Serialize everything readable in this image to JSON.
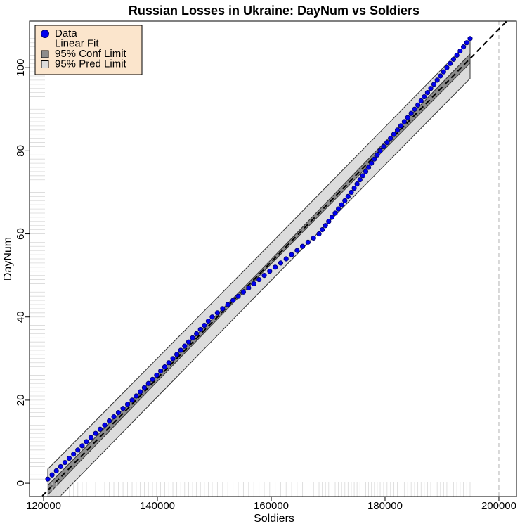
{
  "chart_data": {
    "type": "scatter",
    "title": "Russian Losses in Ukraine: DayNum vs Soldiers",
    "x_label": "Soldiers",
    "y_label": "DayNum",
    "xlim": [
      117530,
      203090
    ],
    "ylim": [
      -3.2,
      111.2
    ],
    "xticks": [
      120000,
      140000,
      160000,
      180000,
      200000
    ],
    "yticks": [
      0,
      20,
      40,
      60,
      80,
      100
    ],
    "vline": 200000,
    "legend": "top-left",
    "series": [
      {
        "name": "Data",
        "kind": "points",
        "color": "#0000ee",
        "x": [
          120740,
          121490,
          122250,
          123000,
          123760,
          124510,
          125270,
          126020,
          126780,
          127530,
          128330,
          129140,
          129940,
          130740,
          131550,
          132350,
          133150,
          133960,
          134760,
          135560,
          136280,
          136990,
          137710,
          138420,
          139140,
          139860,
          140570,
          141290,
          142000,
          142720,
          143410,
          144100,
          144790,
          145480,
          146180,
          146870,
          147560,
          148250,
          148940,
          149630,
          150540,
          151460,
          152370,
          153290,
          154200,
          155110,
          156030,
          156940,
          157860,
          158770,
          159730,
          160700,
          161660,
          162620,
          163590,
          164550,
          165510,
          166470,
          167440,
          168400,
          168970,
          169530,
          170100,
          170670,
          171240,
          171800,
          172370,
          172940,
          173500,
          174070,
          174580,
          175080,
          175590,
          176100,
          176610,
          177110,
          177620,
          178130,
          178630,
          179140,
          179750,
          180350,
          180960,
          181560,
          182170,
          182770,
          183380,
          183980,
          184590,
          185190,
          185760,
          186330,
          186890,
          187460,
          188030,
          188590,
          189160,
          189730,
          190290,
          190860,
          191440,
          192030,
          192610,
          193190,
          193780,
          194360,
          194940
        ],
        "values": [
          1,
          2,
          3,
          4,
          5,
          6,
          7,
          8,
          9,
          10,
          11,
          12,
          13,
          14,
          15,
          16,
          17,
          18,
          19,
          20,
          21,
          22,
          23,
          24,
          25,
          26,
          27,
          28,
          29,
          30,
          31,
          32,
          33,
          34,
          35,
          36,
          37,
          38,
          39,
          40,
          41,
          42,
          43,
          44,
          45,
          46,
          47,
          48,
          49,
          50,
          51,
          52,
          53,
          54,
          55,
          56,
          57,
          58,
          59,
          60,
          61,
          62,
          63,
          64,
          65,
          66,
          67,
          68,
          69,
          70,
          71,
          72,
          73,
          74,
          75,
          76,
          77,
          78,
          79,
          80,
          81,
          82,
          83,
          84,
          85,
          86,
          87,
          88,
          89,
          90,
          91,
          92,
          93,
          94,
          95,
          96,
          97,
          98,
          99,
          100,
          101,
          102,
          103,
          104,
          105,
          106,
          107
        ]
      },
      {
        "name": "Linear Fit",
        "kind": "line",
        "color": "#000000",
        "x": [
          117530,
          203090
        ],
        "values": [
          -6.2,
          113.6
        ]
      },
      {
        "name": "95% Conf Limit",
        "kind": "band",
        "color": "#8c8c8c",
        "x": [
          120740,
          157840,
          194940
        ],
        "lower": [
          -2.8,
          49.8,
          101.1
        ],
        "upper": [
          -0.5,
          50.8,
          103.3
        ]
      },
      {
        "name": "95% Pred Limit",
        "kind": "band",
        "color": "#dcdcdc",
        "x": [
          120740,
          157840,
          194940
        ],
        "lower": [
          -6.2,
          45.8,
          97.4
        ],
        "upper": [
          3.4,
          54.8,
          106.6
        ]
      }
    ]
  }
}
